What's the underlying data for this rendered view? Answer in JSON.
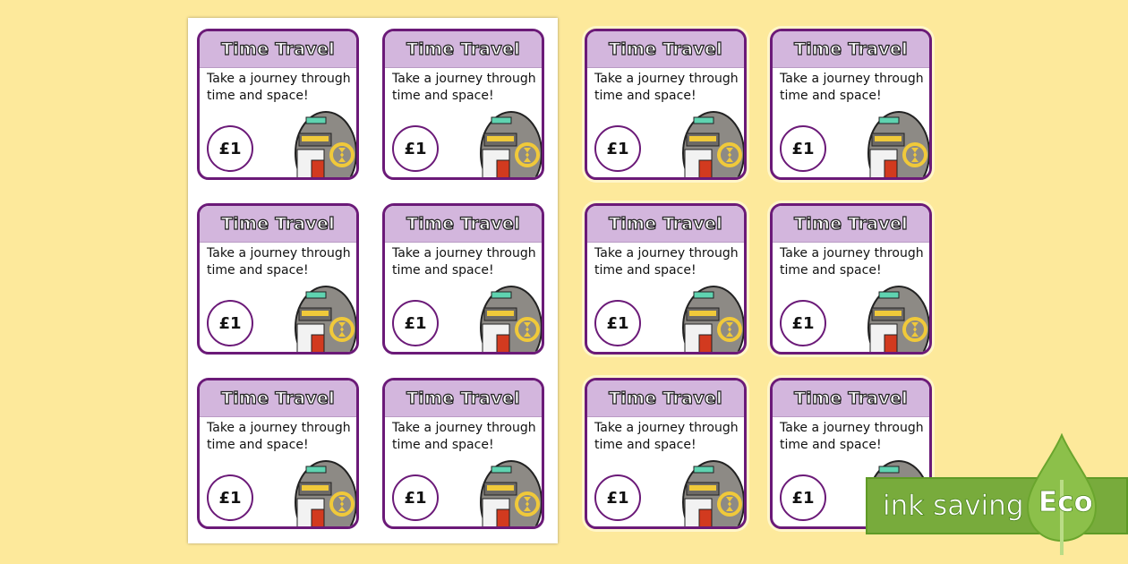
{
  "cards": [
    {
      "title": "Time Travel",
      "text": "Take a journey through time and space!",
      "price": "£1"
    },
    {
      "title": "Time Travel",
      "text": "Take a journey through time and space!",
      "price": "£1"
    },
    {
      "title": "Time Travel",
      "text": "Take a journey through time and space!",
      "price": "£1"
    },
    {
      "title": "Time Travel",
      "text": "Take a journey through time and space!",
      "price": "£1"
    },
    {
      "title": "Time Travel",
      "text": "Take a journey through time and space!",
      "price": "£1"
    },
    {
      "title": "Time Travel",
      "text": "Take a journey through time and space!",
      "price": "£1"
    },
    {
      "title": "Time Travel",
      "text": "Take a journey through time and space!",
      "price": "£1"
    },
    {
      "title": "Time Travel",
      "text": "Take a journey through time and space!",
      "price": "£1"
    },
    {
      "title": "Time Travel",
      "text": "Take a journey through time and space!",
      "price": "£1"
    },
    {
      "title": "Time Travel",
      "text": "Take a journey through time and space!",
      "price": "£1"
    },
    {
      "title": "Time Travel",
      "text": "Take a journey through time and space!",
      "price": "£1"
    },
    {
      "title": "Time Travel",
      "text": "Take a journey through time and space!",
      "price": "£1"
    }
  ],
  "badge": {
    "label": "ink saving",
    "eco": "Eco",
    "color": "#78ab3c"
  },
  "colors": {
    "background": "#fde99b",
    "card_border": "#6b1a78",
    "card_header": "#d3b6dd"
  }
}
